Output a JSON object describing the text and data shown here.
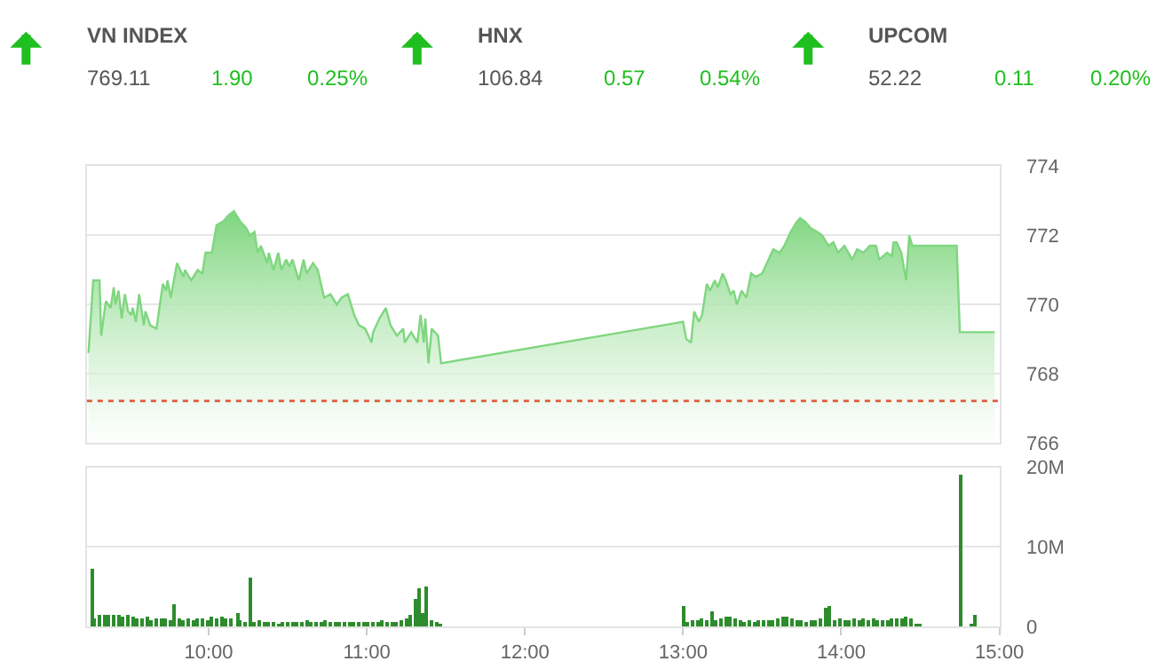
{
  "chart_data": [
    {
      "type": "other",
      "annotations": [
        "VN INDEX",
        "769.11",
        "1.90",
        "0.25%",
        "HNX",
        "106.84",
        "0.57",
        "0.54%",
        "UPCOM",
        "52.22",
        "0.11",
        "0.20%"
      ],
      "colors": [
        "#555555",
        "#555555",
        "#1fbf1f",
        "#1fbf1f",
        "#555555",
        "#555555",
        "#1fbf1f",
        "#1fbf1f",
        "#555555",
        "#555555",
        "#1fbf1f",
        "#1fbf1f"
      ]
    },
    {
      "type": "area",
      "color": "#7fd67f",
      "x": [
        9.24,
        9.27,
        9.31,
        9.32,
        9.35,
        9.38,
        9.4,
        9.41,
        9.43,
        9.45,
        9.47,
        9.49,
        9.51,
        9.52,
        9.54,
        9.56,
        9.59,
        9.6,
        9.63,
        9.67,
        9.71,
        9.73,
        9.74,
        9.76,
        9.8,
        9.84,
        9.85,
        9.89,
        9.93,
        9.96,
        9.98,
        10.02,
        10.05,
        10.09,
        10.13,
        10.16,
        10.2,
        10.24,
        10.26,
        10.29,
        10.31,
        10.33,
        10.37,
        10.38,
        10.41,
        10.44,
        10.46,
        10.49,
        10.51,
        10.53,
        10.57,
        10.6,
        10.62,
        10.66,
        10.69,
        10.73,
        10.77,
        10.81,
        10.84,
        10.88,
        10.92,
        10.95,
        10.99,
        11.03,
        11.04,
        11.08,
        11.12,
        11.15,
        11.19,
        11.23,
        11.24,
        11.28,
        11.32,
        11.34,
        11.36,
        11.37,
        11.39,
        11.41,
        11.45,
        11.47,
        13.0,
        13.02,
        13.05,
        13.07,
        13.1,
        13.12,
        13.15,
        13.17,
        13.2,
        13.22,
        13.25,
        13.27,
        13.3,
        13.32,
        13.34,
        13.37,
        13.4,
        13.43,
        13.46,
        13.5,
        13.53,
        13.57,
        13.61,
        13.64,
        13.68,
        13.72,
        13.74,
        13.77,
        13.81,
        13.85,
        13.88,
        13.92,
        13.95,
        13.98,
        14.02,
        14.07,
        14.1,
        14.14,
        14.18,
        14.22,
        14.24,
        14.29,
        14.32,
        14.33,
        14.35,
        14.38,
        14.41,
        14.43,
        14.45,
        14.73,
        14.75,
        14.97
      ],
      "values": [
        768.6,
        770.7,
        770.7,
        769.1,
        770.1,
        769.9,
        770.5,
        770.0,
        770.4,
        769.6,
        770.3,
        769.8,
        769.7,
        769.9,
        769.5,
        770.3,
        769.4,
        769.8,
        769.4,
        769.3,
        770.6,
        770.4,
        770.7,
        770.2,
        771.2,
        770.8,
        771.0,
        770.7,
        771.0,
        770.9,
        771.5,
        771.5,
        772.3,
        772.4,
        772.6,
        772.7,
        772.4,
        772.2,
        772.0,
        772.1,
        771.5,
        771.7,
        771.2,
        771.5,
        771.0,
        771.5,
        771.0,
        771.3,
        771.1,
        771.3,
        770.7,
        771.3,
        770.9,
        771.2,
        771.0,
        770.2,
        770.3,
        770.0,
        770.2,
        770.3,
        769.7,
        769.4,
        769.3,
        768.9,
        769.2,
        769.6,
        769.9,
        769.4,
        769.1,
        769.3,
        768.9,
        769.2,
        768.9,
        769.7,
        768.9,
        769.6,
        768.3,
        769.3,
        769.1,
        768.3,
        769.5,
        769.0,
        768.9,
        769.8,
        769.5,
        769.7,
        770.6,
        770.4,
        770.7,
        770.5,
        770.9,
        770.7,
        770.3,
        770.4,
        770.0,
        770.4,
        770.2,
        770.9,
        770.8,
        770.9,
        771.2,
        771.6,
        771.5,
        771.7,
        772.1,
        772.4,
        772.5,
        772.4,
        772.2,
        772.1,
        772.0,
        771.7,
        771.8,
        771.5,
        771.7,
        771.3,
        771.6,
        771.5,
        771.7,
        771.7,
        771.3,
        771.5,
        771.4,
        771.8,
        771.8,
        771.5,
        770.7,
        772.0,
        771.7,
        771.7,
        769.2,
        769.2
      ],
      "xlim": [
        9.23,
        15.0
      ],
      "ylim": [
        766,
        774
      ],
      "yticks": [
        766,
        768,
        770,
        772,
        774
      ],
      "ref_lines": [
        {
          "axis": "y",
          "value": 767.21,
          "color": "#e05a3a",
          "line_style": "dotted"
        }
      ],
      "grid": "y",
      "tick_labels": "y"
    },
    {
      "type": "bar",
      "color": "#2d8c2d",
      "x": [
        9.26,
        9.28,
        9.31,
        9.34,
        9.37,
        9.4,
        9.43,
        9.46,
        9.49,
        9.52,
        9.55,
        9.58,
        9.61,
        9.64,
        9.67,
        9.7,
        9.73,
        9.76,
        9.78,
        9.81,
        9.84,
        9.87,
        9.9,
        9.93,
        9.96,
        9.99,
        10.02,
        10.05,
        10.08,
        10.11,
        10.14,
        10.18,
        10.2,
        10.23,
        10.26,
        10.29,
        10.32,
        10.35,
        10.38,
        10.41,
        10.44,
        10.47,
        10.5,
        10.53,
        10.56,
        10.59,
        10.62,
        10.65,
        10.68,
        10.71,
        10.74,
        10.77,
        10.8,
        10.83,
        10.86,
        10.89,
        10.92,
        10.95,
        10.98,
        11.01,
        11.04,
        11.07,
        11.1,
        11.13,
        11.16,
        11.19,
        11.22,
        11.25,
        11.28,
        11.31,
        11.33,
        11.35,
        11.38,
        11.41,
        11.44,
        11.47,
        13.0,
        13.03,
        13.06,
        13.09,
        13.12,
        13.15,
        13.18,
        13.21,
        13.24,
        13.27,
        13.3,
        13.33,
        13.36,
        13.39,
        13.42,
        13.45,
        13.48,
        13.51,
        13.54,
        13.57,
        13.6,
        13.63,
        13.66,
        13.69,
        13.72,
        13.75,
        13.78,
        13.81,
        13.84,
        13.87,
        13.9,
        13.93,
        13.96,
        13.99,
        14.02,
        14.05,
        14.08,
        14.11,
        14.14,
        14.17,
        14.2,
        14.23,
        14.26,
        14.29,
        14.32,
        14.35,
        14.38,
        14.41,
        14.44,
        14.47,
        14.5,
        14.76,
        14.82,
        14.85
      ],
      "values": [
        7.2,
        1.1,
        1.4,
        1.6,
        1.5,
        1.4,
        1.6,
        1.3,
        1.5,
        1.2,
        1.1,
        1.0,
        1.2,
        0.9,
        1.1,
        1.0,
        1.1,
        0.9,
        2.8,
        1.1,
        0.9,
        1.0,
        0.9,
        1.0,
        1.1,
        0.9,
        1.2,
        1.1,
        1.2,
        1.0,
        1.1,
        1.7,
        0.9,
        0.7,
        6.2,
        0.6,
        0.8,
        0.7,
        0.6,
        0.5,
        0.4,
        0.5,
        0.6,
        0.5,
        0.7,
        0.6,
        0.8,
        0.6,
        0.5,
        0.7,
        0.8,
        0.6,
        0.7,
        0.6,
        0.5,
        0.6,
        0.5,
        0.7,
        0.6,
        0.7,
        0.5,
        0.6,
        0.9,
        0.5,
        0.6,
        0.5,
        0.8,
        1.0,
        1.4,
        3.5,
        4.8,
        1.8,
        5.0,
        0.8,
        0.6,
        0.4,
        2.6,
        0.6,
        0.8,
        0.9,
        1.0,
        0.9,
        2.0,
        0.9,
        1.0,
        1.3,
        1.2,
        1.1,
        0.8,
        0.7,
        0.8,
        0.7,
        0.8,
        0.9,
        0.8,
        0.9,
        1.0,
        1.2,
        1.3,
        1.1,
        0.9,
        0.8,
        0.7,
        0.8,
        0.9,
        1.0,
        2.4,
        2.7,
        0.9,
        1.0,
        0.9,
        0.8,
        1.0,
        0.9,
        1.1,
        0.9,
        1.0,
        0.9,
        0.8,
        0.9,
        1.0,
        1.1,
        1.0,
        1.2,
        1.0,
        0.3,
        0.3,
        19.0,
        0.4,
        1.5
      ],
      "xlim": [
        9.23,
        15.0
      ],
      "xticks": [
        {
          "value": 10,
          "label": "10:00"
        },
        {
          "value": 11,
          "label": "11:00"
        },
        {
          "value": 12,
          "label": "12:00"
        },
        {
          "value": 13,
          "label": "13:00"
        },
        {
          "value": 14,
          "label": "14:00"
        },
        {
          "value": 15,
          "label": "15:00"
        }
      ],
      "ylim": [
        0,
        20
      ],
      "yticks": [
        0,
        {
          "value": 10,
          "label": "10M"
        },
        {
          "value": 20,
          "label": "20M"
        }
      ],
      "grid": "y"
    }
  ]
}
